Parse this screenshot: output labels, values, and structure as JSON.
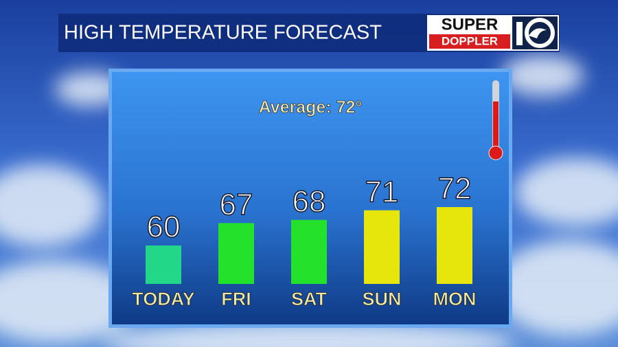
{
  "chart_data": {
    "type": "bar",
    "title": "HIGH TEMPERATURE FORECAST",
    "logo_top": "SUPER",
    "logo_bottom": "DOPPLER",
    "subtitle": "Average: 72°",
    "categories": [
      "TODAY",
      "FRI",
      "SAT",
      "SUN",
      "MON"
    ],
    "values": [
      60,
      67,
      68,
      71,
      72
    ],
    "colors": [
      "#22d888",
      "#24e22c",
      "#24e22c",
      "#e6e60c",
      "#e6e60c"
    ],
    "ylim": [
      48,
      75
    ]
  }
}
